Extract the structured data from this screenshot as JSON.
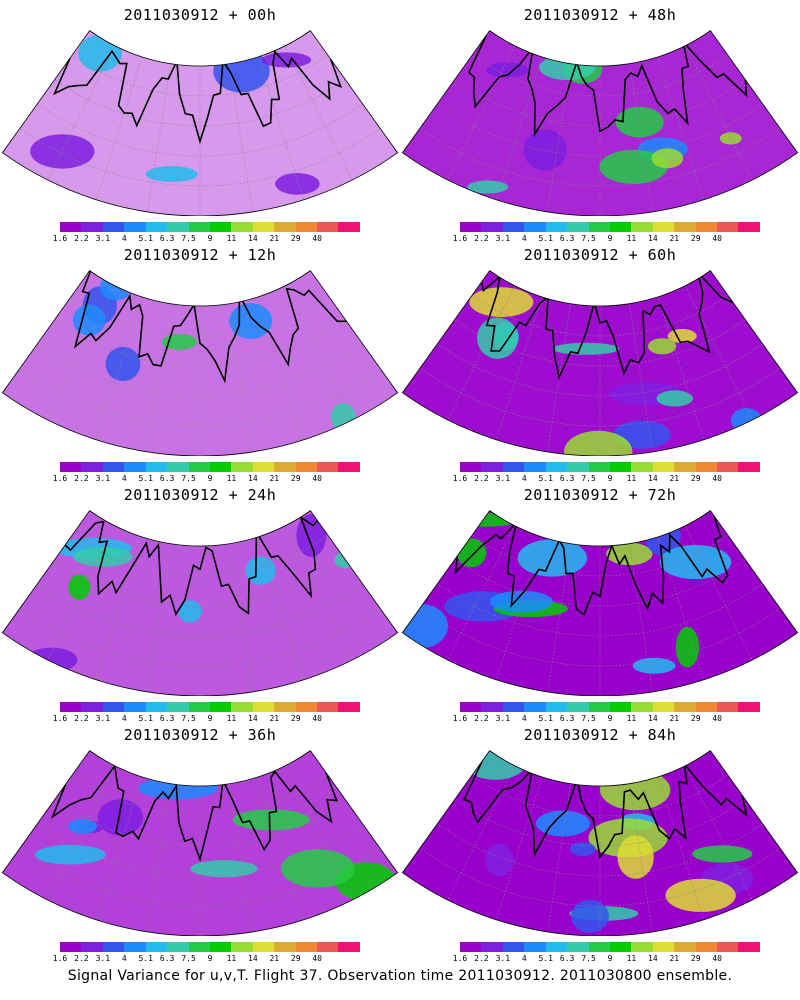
{
  "panels": [
    {
      "title": "2011030912 + 00h",
      "intensity": 0.15
    },
    {
      "title": "2011030912 + 48h",
      "intensity": 0.6
    },
    {
      "title": "2011030912 + 12h",
      "intensity": 0.3
    },
    {
      "title": "2011030912 + 60h",
      "intensity": 0.7
    },
    {
      "title": "2011030912 + 24h",
      "intensity": 0.4
    },
    {
      "title": "2011030912 + 72h",
      "intensity": 0.8
    },
    {
      "title": "2011030912 + 36h",
      "intensity": 0.5
    },
    {
      "title": "2011030912 + 84h",
      "intensity": 0.9
    }
  ],
  "colorbar": {
    "labels": [
      "1.6",
      "2.2",
      "3.1",
      "4",
      "5.1",
      "6.3",
      "7.5",
      "9",
      "11",
      "14",
      "21",
      "29",
      "40"
    ],
    "colors": [
      "#9900cc",
      "#7f1fe0",
      "#3355ee",
      "#1a8cff",
      "#22bbee",
      "#33ccaa",
      "#22cc44",
      "#00cc00",
      "#99dd33",
      "#dddd33",
      "#ddaa33",
      "#ee8833",
      "#ee5555",
      "#ee1177"
    ]
  },
  "footer": "Signal Variance for u,v,T. Flight 37. Observation time 2011030912. 2011030800 ensemble."
}
